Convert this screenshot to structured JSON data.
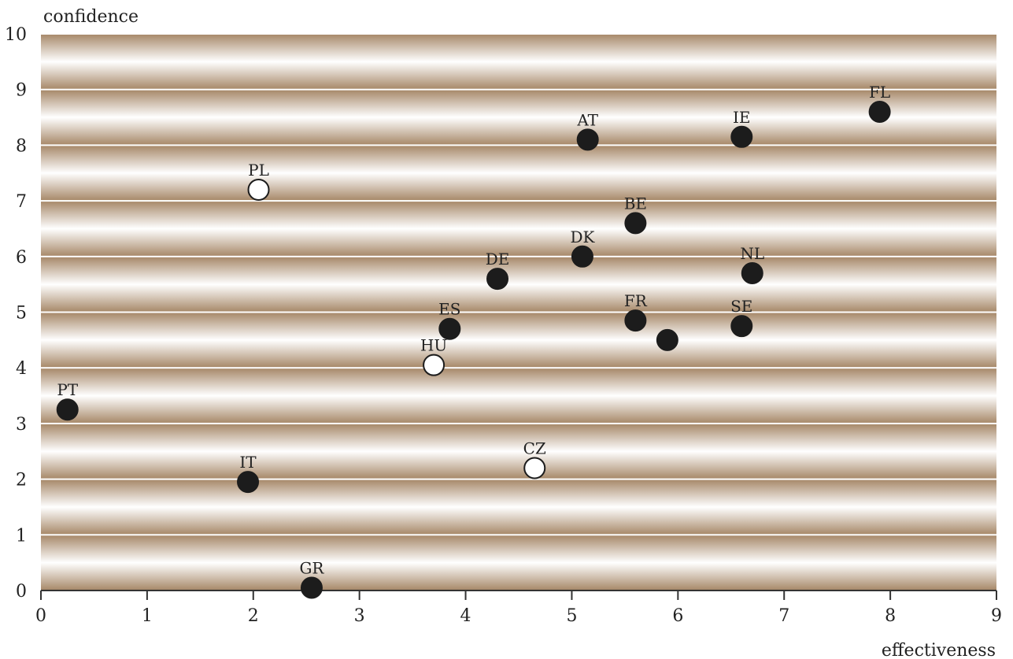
{
  "chart_data": {
    "type": "scatter",
    "xlabel": "effectiveness",
    "ylabel": "confidence",
    "xlim": [
      0,
      9
    ],
    "ylim": [
      0,
      10
    ],
    "x_ticks": [
      "0",
      "1",
      "2",
      "3",
      "4",
      "5",
      "6",
      "7",
      "8",
      "9"
    ],
    "y_ticks": [
      "0",
      "1",
      "2",
      "3",
      "4",
      "5",
      "6",
      "7",
      "8",
      "9",
      "10"
    ],
    "grid": "horizontal bands",
    "colors": {
      "band_dark": "#a88a6b",
      "band_light": "#ffffff",
      "filled_marker": "#1c1c1c",
      "open_marker": "#ffffff"
    },
    "points": [
      {
        "label": "FL",
        "x": 7.9,
        "y": 8.6,
        "marker": "filled"
      },
      {
        "label": "AT",
        "x": 5.15,
        "y": 8.1,
        "marker": "filled"
      },
      {
        "label": "IE",
        "x": 6.6,
        "y": 8.15,
        "marker": "filled"
      },
      {
        "label": "PL",
        "x": 2.05,
        "y": 7.2,
        "marker": "open"
      },
      {
        "label": "BE",
        "x": 5.6,
        "y": 6.6,
        "marker": "filled"
      },
      {
        "label": "DK",
        "x": 5.1,
        "y": 6.0,
        "marker": "filled"
      },
      {
        "label": "DE",
        "x": 4.3,
        "y": 5.6,
        "marker": "filled"
      },
      {
        "label": "NL",
        "x": 6.7,
        "y": 5.7,
        "marker": "filled"
      },
      {
        "label": "ES",
        "x": 3.85,
        "y": 4.7,
        "marker": "filled"
      },
      {
        "label": "FR",
        "x": 5.6,
        "y": 4.85,
        "marker": "filled"
      },
      {
        "label": "",
        "x": 5.9,
        "y": 4.5,
        "marker": "filled"
      },
      {
        "label": "SE",
        "x": 6.6,
        "y": 4.75,
        "marker": "filled"
      },
      {
        "label": "HU",
        "x": 3.7,
        "y": 4.05,
        "marker": "open"
      },
      {
        "label": "PT",
        "x": 0.25,
        "y": 3.25,
        "marker": "filled"
      },
      {
        "label": "CZ",
        "x": 4.65,
        "y": 2.2,
        "marker": "open"
      },
      {
        "label": "IT",
        "x": 1.95,
        "y": 1.95,
        "marker": "filled"
      },
      {
        "label": "GR",
        "x": 2.55,
        "y": 0.05,
        "marker": "filled"
      }
    ]
  }
}
